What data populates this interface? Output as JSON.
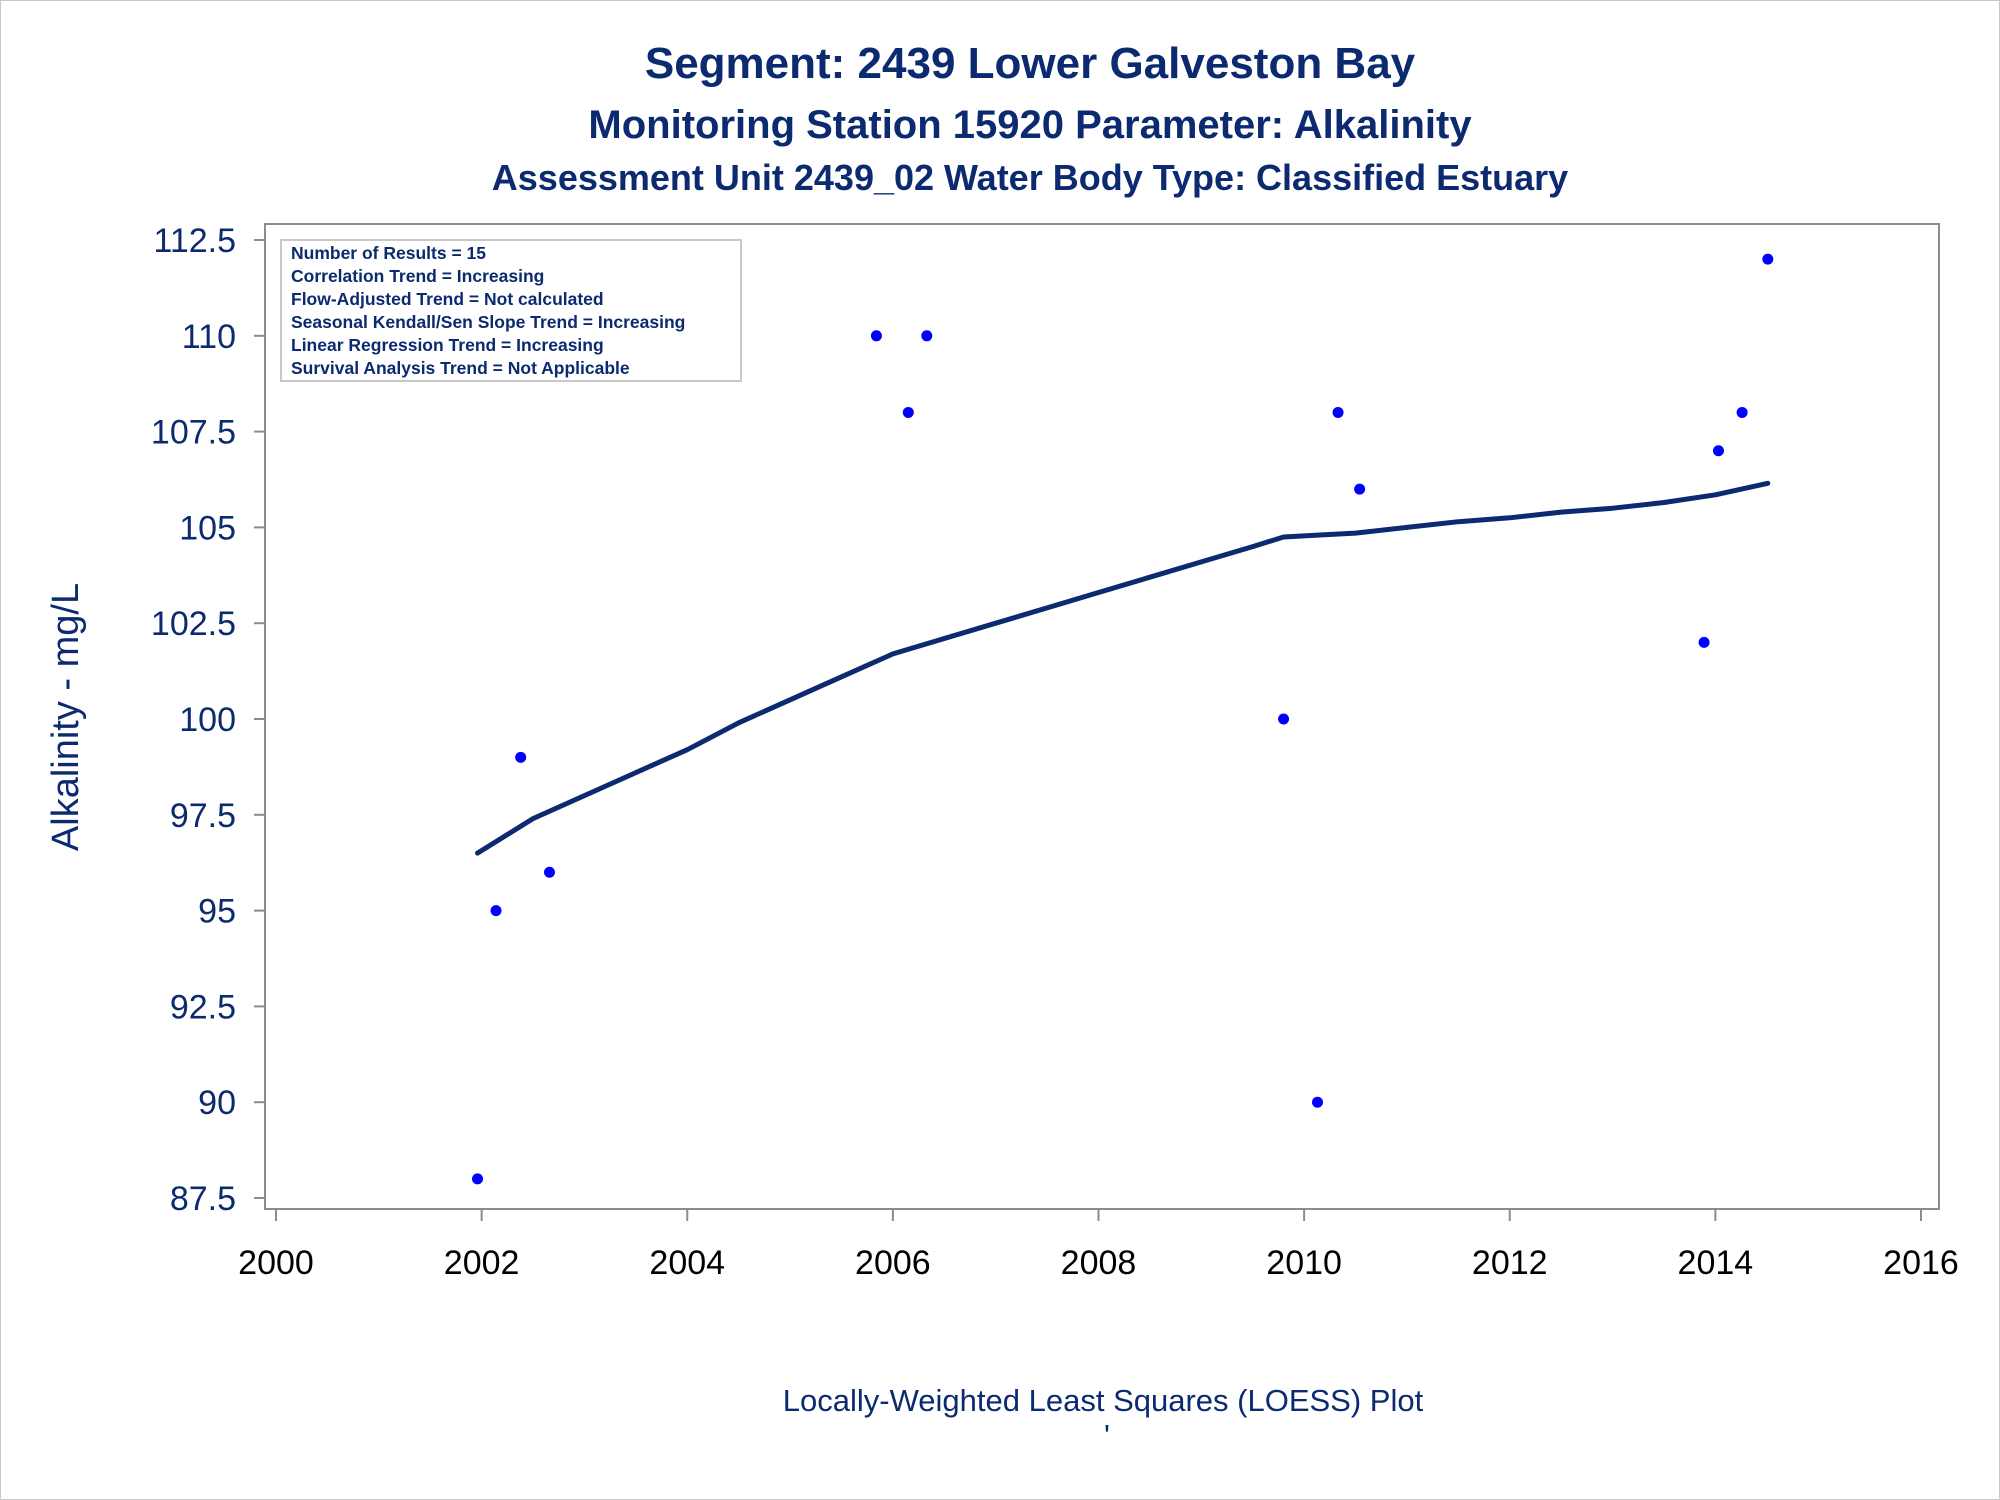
{
  "titles": {
    "line1": "Segment: 2439  Lower Galveston Bay",
    "line2": "Monitoring Station 15920 Parameter: Alkalinity",
    "line3": "Assessment Unit 2439_02   Water Body Type: Classified Estuary"
  },
  "footnote": "Locally-Weighted Least Squares (LOESS) Plot",
  "footnote_mark": "'",
  "stats_box": [
    "Number of Results = 15",
    "Correlation Trend = Increasing",
    "Flow-Adjusted Trend = Not calculated",
    "Seasonal Kendall/Sen Slope Trend = Increasing",
    "Linear Regression Trend = Increasing",
    "Survival Analysis Trend = Not Applicable"
  ],
  "colors": {
    "points": "#0000ff",
    "loess_line": "#0b2a6f",
    "text": "#0b2a6f",
    "axis": "#8c8c8c"
  },
  "chart_data": {
    "type": "scatter",
    "title": "Segment: 2439  Lower Galveston Bay",
    "xlabel": "",
    "ylabel": "Alkalinity - mg/L",
    "xlim": [
      2000,
      2016
    ],
    "ylim": [
      87.5,
      112.5
    ],
    "x_ticks": [
      "2000",
      "2002",
      "2004",
      "2006",
      "2008",
      "2010",
      "2012",
      "2014",
      "2016"
    ],
    "y_ticks": [
      "87.5",
      "90",
      "92.5",
      "95",
      "97.5",
      "100",
      "102.5",
      "105",
      "107.5",
      "110",
      "112.5"
    ],
    "grid": false,
    "legend": "none",
    "points": [
      {
        "x": 2001.96,
        "y": 88
      },
      {
        "x": 2002.14,
        "y": 95
      },
      {
        "x": 2002.38,
        "y": 99
      },
      {
        "x": 2002.66,
        "y": 96
      },
      {
        "x": 2005.84,
        "y": 110
      },
      {
        "x": 2006.15,
        "y": 108
      },
      {
        "x": 2006.33,
        "y": 110
      },
      {
        "x": 2009.8,
        "y": 100
      },
      {
        "x": 2010.13,
        "y": 90
      },
      {
        "x": 2010.33,
        "y": 108
      },
      {
        "x": 2010.54,
        "y": 106
      },
      {
        "x": 2013.89,
        "y": 102
      },
      {
        "x": 2014.03,
        "y": 107
      },
      {
        "x": 2014.26,
        "y": 108
      },
      {
        "x": 2014.51,
        "y": 112
      }
    ],
    "loess": {
      "x": [
        2001.96,
        2002.5,
        2003.0,
        2003.5,
        2004.0,
        2004.5,
        2005.0,
        2005.5,
        2006.0,
        2006.5,
        2007.0,
        2007.5,
        2008.0,
        2008.5,
        2009.0,
        2009.5,
        2009.8,
        2010.13,
        2010.5,
        2011.0,
        2011.5,
        2012.0,
        2012.5,
        2013.0,
        2013.5,
        2014.0,
        2014.51
      ],
      "y": [
        96.5,
        97.4,
        98.0,
        98.6,
        99.2,
        99.9,
        100.5,
        101.1,
        101.7,
        102.1,
        102.5,
        102.9,
        103.3,
        103.7,
        104.1,
        104.5,
        104.75,
        104.8,
        104.85,
        105.0,
        105.15,
        105.25,
        105.4,
        105.5,
        105.65,
        105.85,
        106.15
      ]
    }
  }
}
